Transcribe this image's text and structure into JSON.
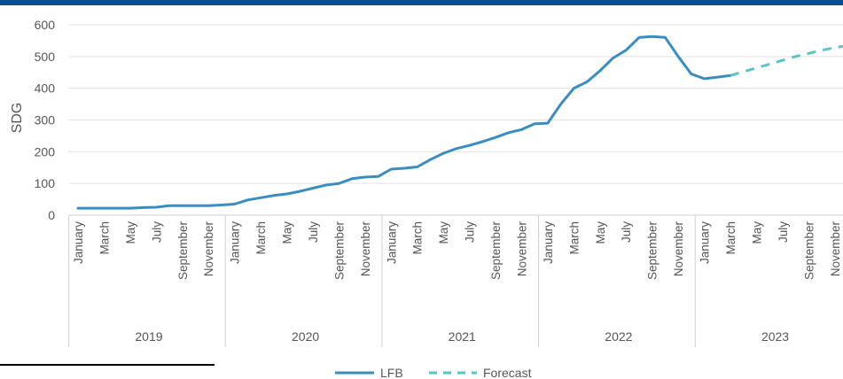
{
  "colors": {
    "accent_bar": "#0d4f8b",
    "series_line": "#3a8dc2",
    "forecast_line": "#5cc4c4",
    "grid": "#e3e3e3",
    "text": "#555555"
  },
  "chart_data": {
    "type": "line",
    "ylabel": "SDG",
    "ylim": [
      0,
      600
    ],
    "yticks": [
      0,
      100,
      200,
      300,
      400,
      500,
      600
    ],
    "grid": true,
    "legend_position": "bottom-center",
    "month_tick_labels": [
      "January",
      "March",
      "May",
      "July",
      "September",
      "November"
    ],
    "years": [
      "2019",
      "2020",
      "2021",
      "2022",
      "2023"
    ],
    "series": [
      {
        "name": "LFB",
        "style": "solid",
        "x": [
          "2019-01",
          "2019-02",
          "2019-03",
          "2019-04",
          "2019-05",
          "2019-06",
          "2019-07",
          "2019-08",
          "2019-09",
          "2019-10",
          "2019-11",
          "2019-12",
          "2020-01",
          "2020-02",
          "2020-03",
          "2020-04",
          "2020-05",
          "2020-06",
          "2020-07",
          "2020-08",
          "2020-09",
          "2020-10",
          "2020-11",
          "2020-12",
          "2021-01",
          "2021-02",
          "2021-03",
          "2021-04",
          "2021-05",
          "2021-06",
          "2021-07",
          "2021-08",
          "2021-09",
          "2021-10",
          "2021-11",
          "2021-12",
          "2022-01",
          "2022-02",
          "2022-03",
          "2022-04",
          "2022-05",
          "2022-06",
          "2022-07",
          "2022-08",
          "2022-09",
          "2022-10",
          "2022-11",
          "2022-12",
          "2023-01",
          "2023-02",
          "2023-03"
        ],
        "values": [
          22,
          22,
          22,
          22,
          22,
          24,
          25,
          30,
          30,
          30,
          30,
          32,
          35,
          48,
          55,
          62,
          67,
          75,
          85,
          95,
          100,
          115,
          120,
          122,
          145,
          148,
          152,
          175,
          195,
          210,
          220,
          232,
          245,
          260,
          270,
          288,
          290,
          350,
          400,
          420,
          455,
          495,
          520,
          560,
          563,
          560,
          500,
          445,
          430,
          435,
          440
        ]
      },
      {
        "name": "Forecast",
        "style": "dashed",
        "x": [
          "2023-03",
          "2023-04",
          "2023-05",
          "2023-06",
          "2023-07",
          "2023-08",
          "2023-09",
          "2023-10",
          "2023-11",
          "2023-12"
        ],
        "values": [
          440,
          452,
          464,
          476,
          488,
          500,
          510,
          520,
          528,
          535
        ]
      }
    ]
  }
}
